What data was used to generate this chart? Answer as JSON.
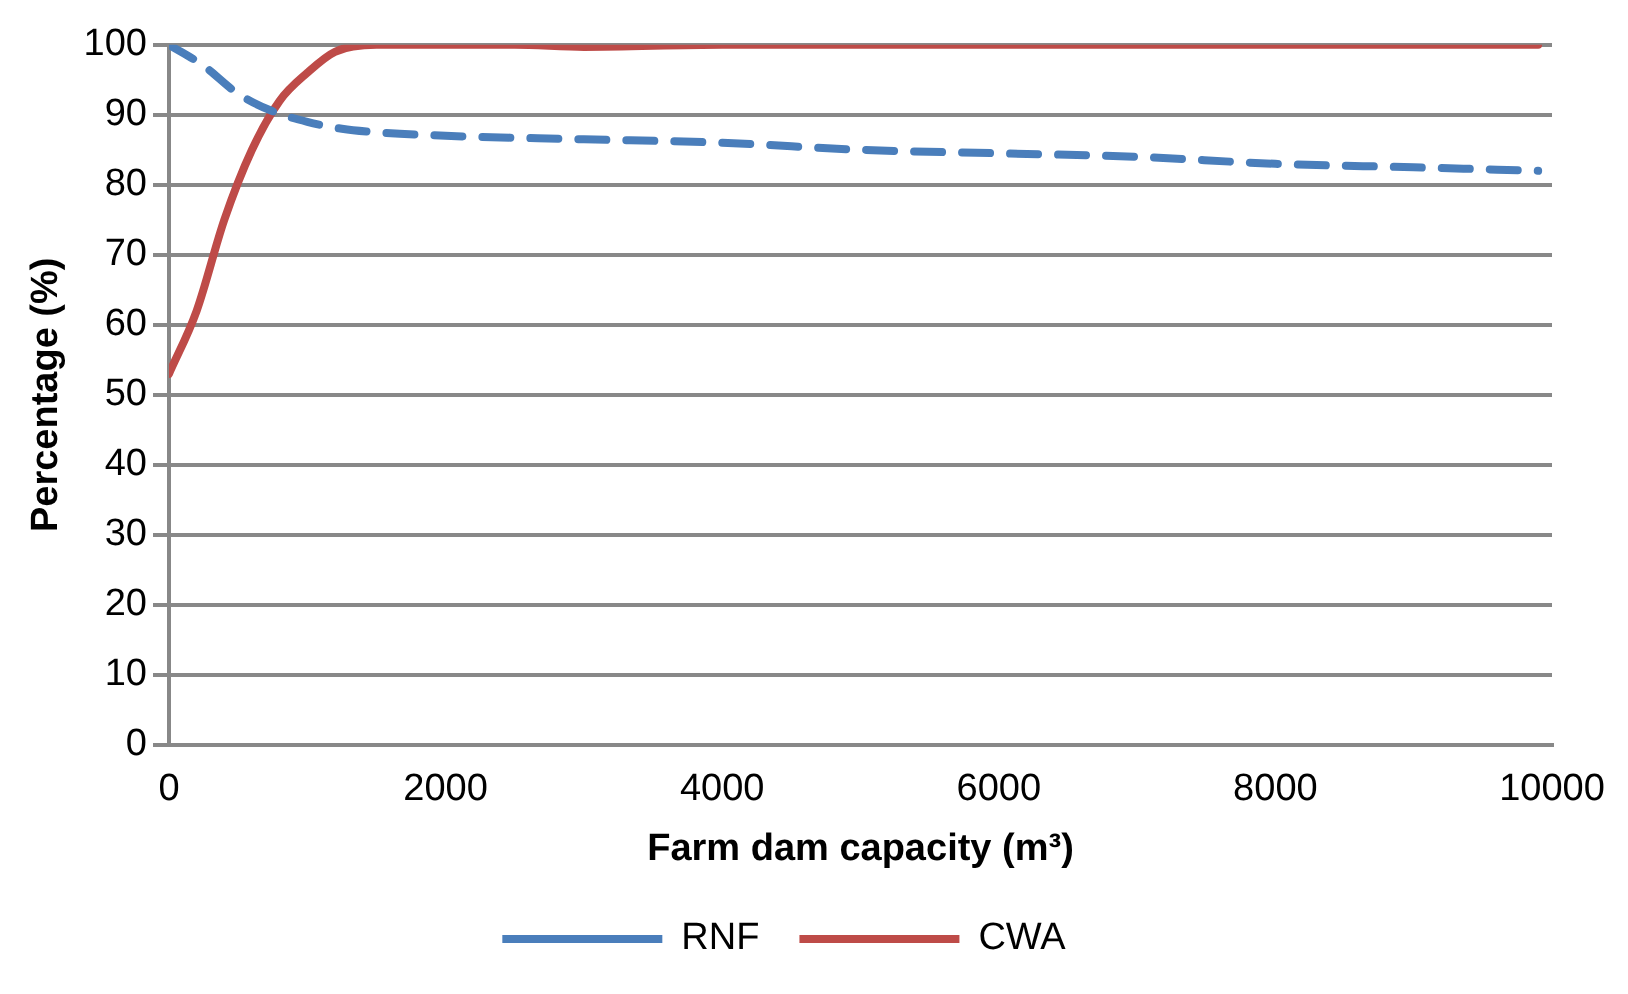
{
  "chart_data": {
    "type": "line",
    "xlabel": "Farm dam capacity (m³)",
    "ylabel": "Percentage (%)",
    "xlim": [
      0,
      10000
    ],
    "xticks": [
      0,
      2000,
      4000,
      6000,
      8000,
      10000
    ],
    "ylim": [
      0,
      100
    ],
    "yticks": [
      0,
      10,
      20,
      30,
      40,
      50,
      60,
      70,
      80,
      90,
      100
    ],
    "grid": "y",
    "legend": "bottom",
    "marker": "none",
    "series": [
      {
        "name": "RNF",
        "color": "#4a7ebb",
        "line_style": "dashed",
        "x": [
          0,
          250,
          500,
          750,
          1000,
          1250,
          1500,
          2000,
          3000,
          4000,
          5000,
          6000,
          7000,
          8000,
          9000,
          9900
        ],
        "values": [
          100,
          97,
          93,
          90.5,
          89,
          88,
          87.5,
          87,
          86.5,
          86,
          85,
          84.5,
          84,
          83,
          82.5,
          82
        ]
      },
      {
        "name": "CWA",
        "color": "#be4b48",
        "line_style": "solid",
        "x": [
          0,
          200,
          400,
          600,
          800,
          1000,
          1200,
          1500,
          2500,
          3000,
          4000,
          6000,
          8000,
          9900
        ],
        "values": [
          53,
          62,
          75,
          85,
          92,
          96,
          99,
          100,
          100,
          99.7,
          100,
          100,
          100,
          100
        ]
      }
    ]
  }
}
